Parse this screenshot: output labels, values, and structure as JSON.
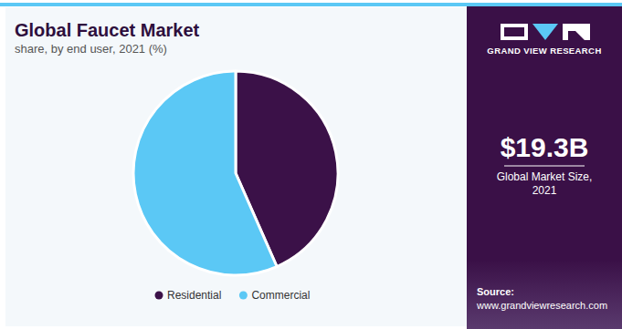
{
  "chart_data": {
    "type": "pie",
    "title": "Global Faucet Market",
    "subtitle": "share, by end user, 2021 (%)",
    "categories": [
      "Residential",
      "Commercial"
    ],
    "values": [
      43.4,
      56.6
    ],
    "colors": [
      "#3b1148",
      "#5bc8f5"
    ],
    "legend": "bottom",
    "annotations": [
      "$19.3B",
      "Global Market Size, 2021"
    ],
    "brand": "GRAND VIEW RESEARCH",
    "source": "Source:",
    "source_url": "www.grandviewresearch.com"
  }
}
